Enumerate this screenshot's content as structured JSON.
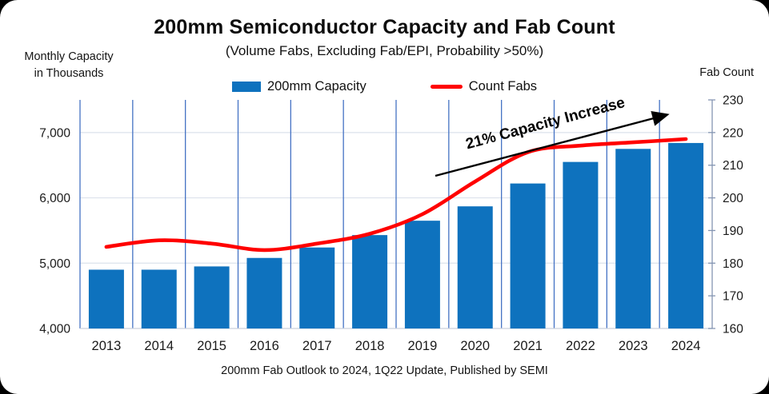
{
  "header": {
    "title": "200mm Semiconductor Capacity and Fab Count",
    "subtitle": "(Volume Fabs, Excluding Fab/EPI, Probability >50%)"
  },
  "axis_titles": {
    "left_line1": "Monthly Capacity",
    "left_line2": "in Thousands",
    "right": "Fab Count"
  },
  "legend": [
    {
      "label": "200mm Capacity",
      "swatch": "bar-swatch",
      "color": "#0E72BE"
    },
    {
      "label": "Count Fabs",
      "swatch": "line-swatch",
      "color": "#FF0000"
    }
  ],
  "footer": "200mm Fab Outlook to 2024, 1Q22 Update, Published by SEMI",
  "colors": {
    "bar_blue": "#0E72BE",
    "line_red": "#FF0000",
    "vertical_gridline": "#4472C4",
    "horizontal_gridline": "#DCE2EC",
    "bottom_axis_line": "#C9D1DE",
    "right_axis_line": "#8495B2",
    "tick_text": "#1A1A1A",
    "annotation": "#000000"
  },
  "chart_data": {
    "type": "bar",
    "combo": "bar+line dual-axis",
    "title": "200mm Semiconductor Capacity and Fab Count",
    "subtitle": "(Volume Fabs, Excluding Fab/EPI, Probability >50%)",
    "categories": [
      "2013",
      "2014",
      "2015",
      "2016",
      "2017",
      "2018",
      "2019",
      "2020",
      "2021",
      "2022",
      "2023",
      "2024"
    ],
    "series": [
      {
        "name": "200mm Capacity",
        "type": "bar",
        "axis": "left",
        "color": "#0E72BE",
        "values": [
          4900,
          4900,
          4950,
          5080,
          5240,
          5430,
          5650,
          5870,
          6220,
          6550,
          6750,
          6840
        ]
      },
      {
        "name": "Count Fabs",
        "type": "line",
        "axis": "right",
        "color": "#FF0000",
        "values": [
          185,
          187,
          186,
          184,
          186,
          189,
          195,
          205,
          214,
          216,
          217,
          218
        ]
      }
    ],
    "left_axis": {
      "label": "Monthly Capacity in Thousands",
      "min": 4000,
      "max": 7500,
      "tick_values": [
        4000,
        5000,
        6000,
        7000
      ],
      "tick_labels": [
        "4,000",
        "5,000",
        "6,000",
        "7,000"
      ],
      "gridline_values": [
        5000,
        6000,
        7000
      ]
    },
    "right_axis": {
      "label": "Fab Count",
      "min": 160,
      "max": 230,
      "ticks": [
        160,
        170,
        180,
        190,
        200,
        210,
        220,
        230
      ]
    },
    "annotation": {
      "text": "21% Capacity Increase"
    },
    "legend_position": "top",
    "grid": "vertical-blue-between-categories, horizontal-light-every-1000"
  }
}
